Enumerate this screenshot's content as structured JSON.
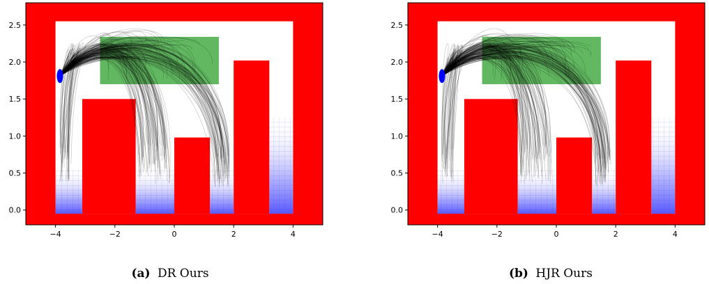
{
  "chart_data": [
    {
      "type": "scatter",
      "caption_prefix": "(a)",
      "caption_text": "DR Ours",
      "xlim": [
        -5,
        5
      ],
      "ylim": [
        -0.2,
        2.8
      ],
      "xticks": [
        -4,
        -2,
        0,
        2,
        4
      ],
      "xtick_labels": [
        "−4",
        "−2",
        "0",
        "2",
        "4"
      ],
      "yticks": [
        0.0,
        0.5,
        1.0,
        1.5,
        2.0,
        2.5
      ],
      "ytick_labels": [
        "0.0",
        "0.5",
        "1.0",
        "1.5",
        "2.0",
        "2.5"
      ],
      "grid": false,
      "regions": {
        "free_space": {
          "x": [
            -4.0,
            4.0
          ],
          "y": [
            -0.05,
            2.55
          ],
          "color": "#ffffff"
        },
        "obstacles": [
          {
            "x": [
              -3.1,
              -1.3
            ],
            "y": [
              -0.05,
              1.5
            ]
          },
          {
            "x": [
              0.0,
              1.2
            ],
            "y": [
              -0.05,
              0.98
            ]
          },
          {
            "x": [
              2.0,
              3.2
            ],
            "y": [
              -0.05,
              2.02
            ]
          }
        ],
        "target": {
          "x": [
            -2.5,
            1.5
          ],
          "y": [
            1.7,
            2.34
          ],
          "color": "#2ca02c"
        }
      },
      "start": {
        "x": -3.85,
        "y": 1.81,
        "color": "#0000ff"
      },
      "trajectory_color": "#000000",
      "obstacle_color": "#ff0000"
    },
    {
      "type": "scatter",
      "caption_prefix": "(b)",
      "caption_text": "HJR Ours",
      "xlim": [
        -5,
        5
      ],
      "ylim": [
        -0.2,
        2.8
      ],
      "xticks": [
        -4,
        -2,
        0,
        2,
        4
      ],
      "xtick_labels": [
        "−4",
        "−2",
        "0",
        "2",
        "4"
      ],
      "yticks": [
        0.0,
        0.5,
        1.0,
        1.5,
        2.0,
        2.5
      ],
      "ytick_labels": [
        "0.0",
        "0.5",
        "1.0",
        "1.5",
        "2.0",
        "2.5"
      ],
      "grid": false,
      "regions": {
        "free_space": {
          "x": [
            -4.0,
            4.0
          ],
          "y": [
            -0.05,
            2.55
          ],
          "color": "#ffffff"
        },
        "obstacles": [
          {
            "x": [
              -3.1,
              -1.3
            ],
            "y": [
              -0.05,
              1.5
            ]
          },
          {
            "x": [
              0.0,
              1.2
            ],
            "y": [
              -0.05,
              0.98
            ]
          },
          {
            "x": [
              2.0,
              3.2
            ],
            "y": [
              -0.05,
              2.02
            ]
          }
        ],
        "target": {
          "x": [
            -2.5,
            1.5
          ],
          "y": [
            1.7,
            2.34
          ],
          "color": "#2ca02c"
        }
      },
      "start": {
        "x": -3.85,
        "y": 1.81,
        "color": "#0000ff"
      },
      "trajectory_color": "#000000",
      "obstacle_color": "#ff0000"
    }
  ]
}
